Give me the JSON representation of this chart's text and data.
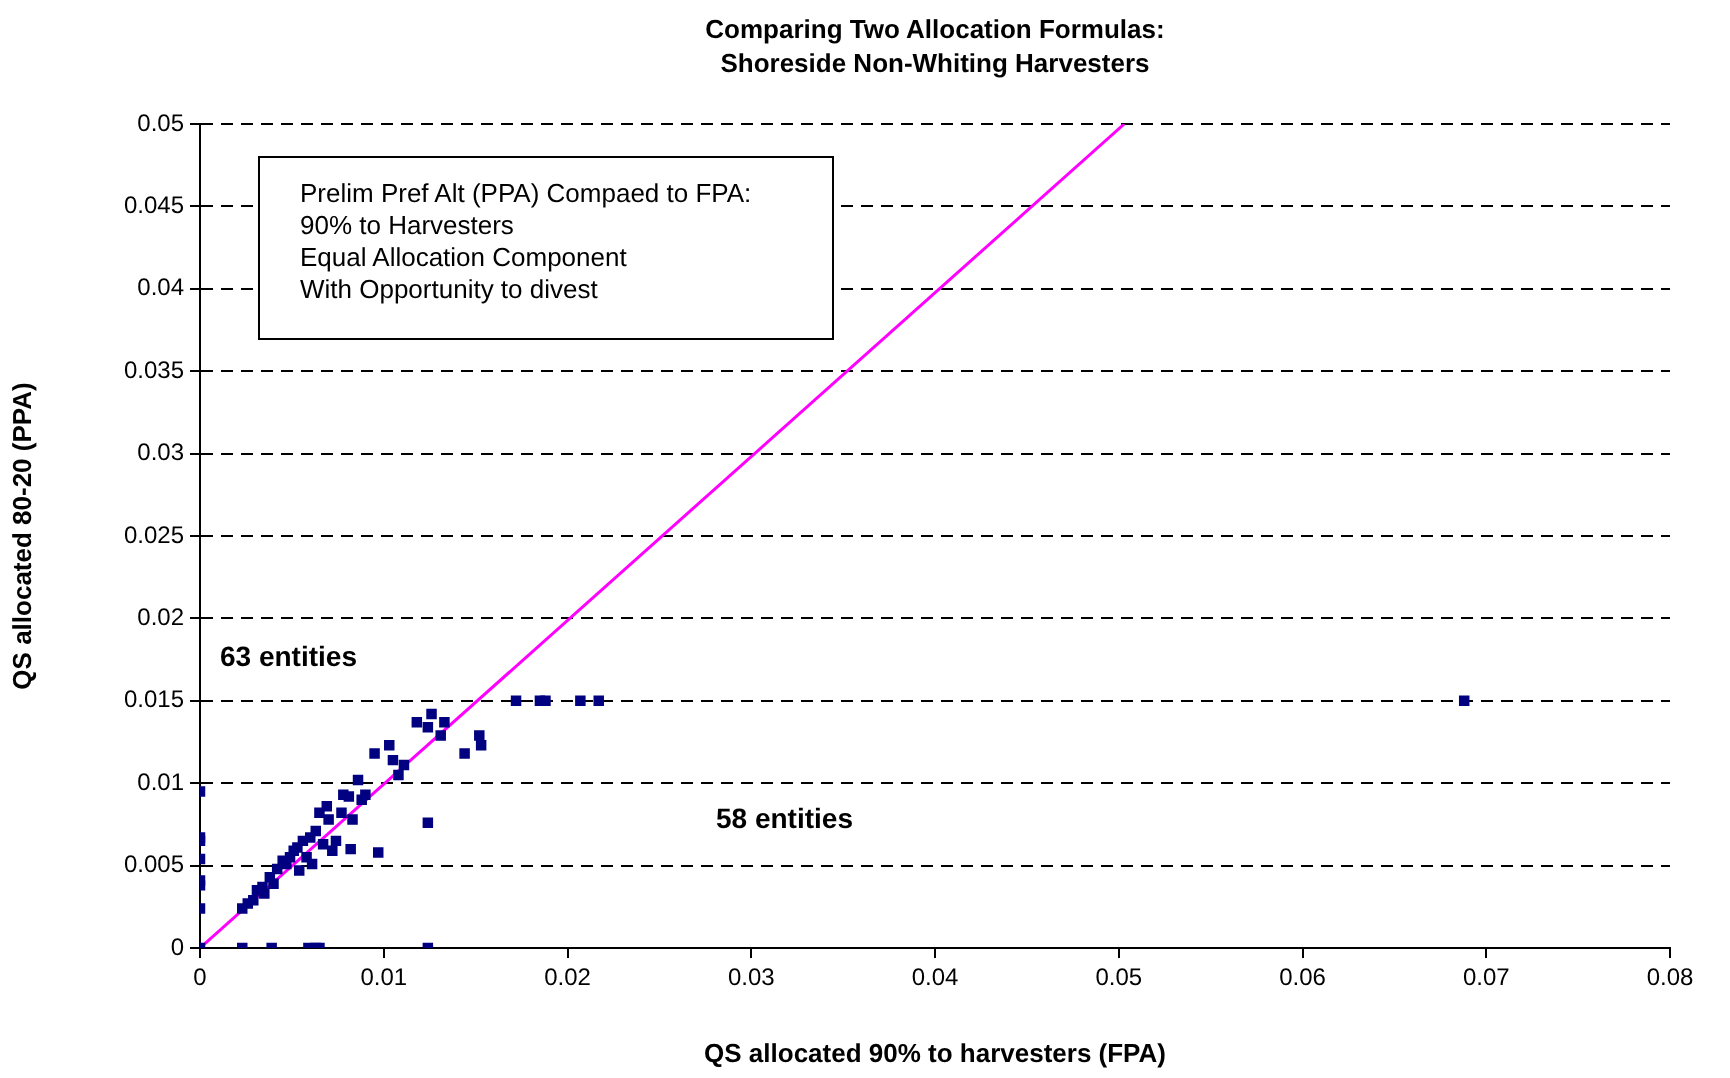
{
  "chart_data": {
    "type": "scatter",
    "title": "Comparing Two Allocation Formulas:\nShoreside Non-Whiting Harvesters",
    "xlabel": "QS allocated 90% to harvesters (FPA)",
    "ylabel": "QS allocated 80-20 (PPA)",
    "xlim": [
      0,
      0.08
    ],
    "xticks": [
      0,
      0.01,
      0.02,
      0.03,
      0.04,
      0.05,
      0.06,
      0.07,
      0.08
    ],
    "ylim": [
      0,
      0.05
    ],
    "yticks": [
      0,
      0.005,
      0.01,
      0.015,
      0.02,
      0.025,
      0.03,
      0.035,
      0.04,
      0.045,
      0.05
    ],
    "grid": "y",
    "legend": false,
    "marker": "square",
    "annotations": [
      "Prelim Pref Alt (PPA) Compaed to FPA:",
      "90% to Harvesters",
      "Equal Allocation Component",
      "With Opportunity to divest",
      "63 entities",
      "58 entities"
    ],
    "series": [
      {
        "color": "#000080",
        "x": [
          0,
          0,
          0,
          0,
          0,
          0,
          0,
          0,
          0.0023,
          0.0039,
          0.0059,
          0.0063,
          0.0065,
          0.0124,
          0.0023,
          0.0026,
          0.0029,
          0.0031,
          0.0034,
          0.0038,
          0.0042,
          0.0045,
          0.004,
          0.0047,
          0.0051,
          0.0054,
          0.0053,
          0.0058,
          0.006,
          0.0061,
          0.0063,
          0.0065,
          0.0067,
          0.007,
          0.0072,
          0.0074,
          0.0077,
          0.0078,
          0.0082,
          0.0083,
          0.0086,
          0.0088,
          0.009,
          0.0095,
          0.0097,
          0.0103,
          0.0105,
          0.0108,
          0.0111,
          0.0118,
          0.0124,
          0.0126,
          0.0124,
          0.0131,
          0.0133,
          0.0144,
          0.0152,
          0.0153,
          0.0172,
          0.0185,
          0.0188,
          0.0207,
          0.0217,
          0.0688,
          0.0056,
          0.0069,
          0.0081,
          0.0049,
          0.0035
        ],
        "values": [
          0.0095,
          0.0067,
          0.0065,
          0.0054,
          0.0041,
          0.0038,
          0.0024,
          0,
          0,
          0,
          0,
          0,
          0,
          0,
          0.0024,
          0.0027,
          0.0029,
          0.0035,
          0.0037,
          0.0043,
          0.0048,
          0.0053,
          0.0039,
          0.0051,
          0.0059,
          0.0047,
          0.0061,
          0.0055,
          0.0067,
          0.0051,
          0.0071,
          0.0082,
          0.0063,
          0.0078,
          0.0059,
          0.0065,
          0.0082,
          0.0093,
          0.006,
          0.0078,
          0.0102,
          0.009,
          0.0093,
          0.0118,
          0.0058,
          0.0123,
          0.0114,
          0.0105,
          0.0111,
          0.0137,
          0.0134,
          0.0142,
          0.0076,
          0.0129,
          0.0137,
          0.0118,
          0.0129,
          0.0123,
          0.015,
          0.015,
          0.015,
          0.015,
          0.015,
          0.015,
          0.0065,
          0.0086,
          0.0092,
          0.0055,
          0.0033
        ]
      },
      {
        "type": "line",
        "color": "#ff00ff",
        "x": [
          0,
          0.0503
        ],
        "values": [
          0,
          0.05
        ],
        "marker": "none",
        "line_style": "solid"
      }
    ]
  }
}
